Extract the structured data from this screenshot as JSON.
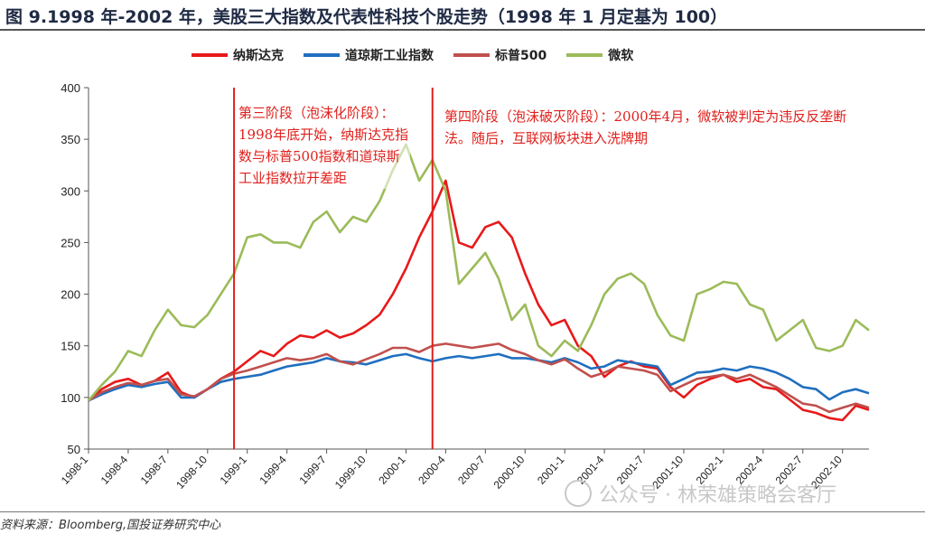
{
  "title": "图 9.1998 年-2002 年，美股三大指数及代表性科技个股走势（1998 年 1 月定基为 100）",
  "source": "资料来源：Bloomberg,国投证券研究中心",
  "watermark": "公众号 · 林荣雄策略会客厅",
  "annotations": {
    "phase3": "第三阶段（泡沫化阶段）：1998年底开始，纳斯达克指数与标普500指数和道琼斯工业指数拉开差距",
    "phase4": "第四阶段（泡沫破灭阶段）：2000年4月，微软被判定为违反反垄断法。随后，互联网板块进入洗牌期"
  },
  "chart_data": {
    "type": "line",
    "title": "",
    "xlabel": "",
    "ylabel": "",
    "ylim": [
      50,
      400
    ],
    "yticks": [
      50,
      100,
      150,
      200,
      250,
      300,
      350,
      400
    ],
    "xlim": [
      "1998-01",
      "2002-12"
    ],
    "x_tick_labels": [
      "1998-1",
      "1998-4",
      "1998-7",
      "1998-10",
      "1999-1",
      "1999-4",
      "1999-7",
      "1999-10",
      "2000-1",
      "2000-4",
      "2000-7",
      "2000-10",
      "2001-1",
      "2001-4",
      "2001-7",
      "2001-10",
      "2002-1",
      "2002-4",
      "2002-7",
      "2002-10"
    ],
    "grid": false,
    "legend": "top",
    "vertical_lines": [
      {
        "x": "1998-12",
        "color": "#e0201c"
      },
      {
        "x": "2000-03",
        "color": "#e0201c"
      }
    ],
    "x": [
      "1998-01",
      "1998-02",
      "1998-03",
      "1998-04",
      "1998-05",
      "1998-06",
      "1998-07",
      "1998-08",
      "1998-09",
      "1998-10",
      "1998-11",
      "1998-12",
      "1999-01",
      "1999-02",
      "1999-03",
      "1999-04",
      "1999-05",
      "1999-06",
      "1999-07",
      "1999-08",
      "1999-09",
      "1999-10",
      "1999-11",
      "1999-12",
      "2000-01",
      "2000-02",
      "2000-03",
      "2000-04",
      "2000-05",
      "2000-06",
      "2000-07",
      "2000-08",
      "2000-09",
      "2000-10",
      "2000-11",
      "2000-12",
      "2001-01",
      "2001-02",
      "2001-03",
      "2001-04",
      "2001-05",
      "2001-06",
      "2001-07",
      "2001-08",
      "2001-09",
      "2001-10",
      "2001-11",
      "2001-12",
      "2002-01",
      "2002-02",
      "2002-03",
      "2002-04",
      "2002-05",
      "2002-06",
      "2002-07",
      "2002-08",
      "2002-09",
      "2002-10",
      "2002-11",
      "2002-12"
    ],
    "series": [
      {
        "name": "纳斯达克",
        "color": "#e8191a",
        "values": [
          97,
          108,
          115,
          118,
          112,
          116,
          124,
          105,
          100,
          108,
          118,
          125,
          135,
          145,
          140,
          152,
          160,
          158,
          165,
          158,
          162,
          170,
          180,
          200,
          225,
          255,
          280,
          310,
          250,
          245,
          265,
          270,
          255,
          220,
          190,
          170,
          175,
          150,
          140,
          120,
          130,
          135,
          130,
          128,
          110,
          100,
          112,
          118,
          122,
          115,
          118,
          110,
          108,
          98,
          88,
          85,
          80,
          78,
          92,
          88
        ]
      },
      {
        "name": "道琼斯工业指数",
        "color": "#1f6fbf",
        "values": [
          97,
          103,
          108,
          112,
          110,
          113,
          115,
          100,
          100,
          108,
          115,
          118,
          120,
          122,
          126,
          130,
          132,
          134,
          138,
          135,
          134,
          132,
          136,
          140,
          142,
          138,
          135,
          138,
          140,
          138,
          140,
          142,
          138,
          138,
          136,
          134,
          138,
          134,
          128,
          130,
          136,
          134,
          132,
          130,
          112,
          118,
          124,
          125,
          128,
          126,
          130,
          128,
          124,
          118,
          110,
          108,
          98,
          105,
          108,
          104
        ]
      },
      {
        "name": "标普500",
        "color": "#c0504d",
        "values": [
          97,
          105,
          110,
          114,
          112,
          116,
          118,
          103,
          101,
          108,
          118,
          123,
          126,
          130,
          134,
          138,
          136,
          138,
          142,
          135,
          132,
          137,
          142,
          148,
          148,
          144,
          150,
          152,
          150,
          148,
          150,
          152,
          146,
          142,
          136,
          132,
          137,
          128,
          120,
          124,
          130,
          128,
          126,
          122,
          106,
          112,
          118,
          120,
          122,
          118,
          122,
          116,
          110,
          102,
          94,
          92,
          86,
          90,
          94,
          90
        ]
      },
      {
        "name": "微软",
        "color": "#9bbb59",
        "values": [
          97,
          112,
          125,
          145,
          140,
          165,
          185,
          170,
          168,
          180,
          200,
          220,
          255,
          258,
          250,
          250,
          245,
          270,
          280,
          260,
          275,
          270,
          290,
          320,
          345,
          310,
          330,
          300,
          210,
          225,
          240,
          215,
          175,
          190,
          150,
          140,
          155,
          145,
          170,
          200,
          215,
          220,
          210,
          180,
          160,
          155,
          200,
          205,
          212,
          210,
          190,
          185,
          155,
          165,
          175,
          148,
          145,
          150,
          175,
          165
        ]
      }
    ]
  }
}
